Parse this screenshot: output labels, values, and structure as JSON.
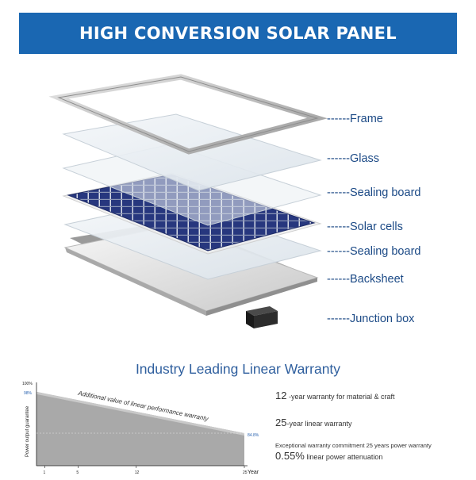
{
  "banner": {
    "title": "HIGH CONVERSION SOLAR PANEL"
  },
  "layers": [
    {
      "label": "------Frame"
    },
    {
      "label": "------Glass"
    },
    {
      "label": "------Sealing board"
    },
    {
      "label": "------Solar cells"
    },
    {
      "label": "------Sealing board"
    },
    {
      "label": "------Backsheet"
    },
    {
      "label": "------Junction box"
    }
  ],
  "warranty": {
    "title": "Industry Leading Linear Warranty",
    "chart_data": {
      "type": "area",
      "ylabel": "Power output guarantee",
      "xlabel": "Year",
      "x_ticks": [
        "1",
        "5",
        "12",
        "25"
      ],
      "y_top_label": "100%",
      "start_label": "98%",
      "end_label": "84.8%",
      "annotation": "Additional value of linear performance warranty",
      "series": [
        {
          "x": [
            1,
            25
          ],
          "values": [
            98,
            84.8
          ]
        }
      ],
      "xlim": [
        0,
        25
      ],
      "ylim": [
        84.8,
        100
      ]
    },
    "terms": [
      {
        "num": "12",
        "text": " -year warranty for material & craft"
      },
      {
        "num": "25",
        "text": "-year linear warranty"
      },
      {
        "text": "Exceptional warranty commitment 25 years power warranty"
      },
      {
        "num": "0.55%",
        "text": "  linear power attenuation"
      }
    ]
  },
  "colors": {
    "banner": "#1a67b2",
    "cells": "#27377e",
    "label_text": "#1c4a86"
  }
}
